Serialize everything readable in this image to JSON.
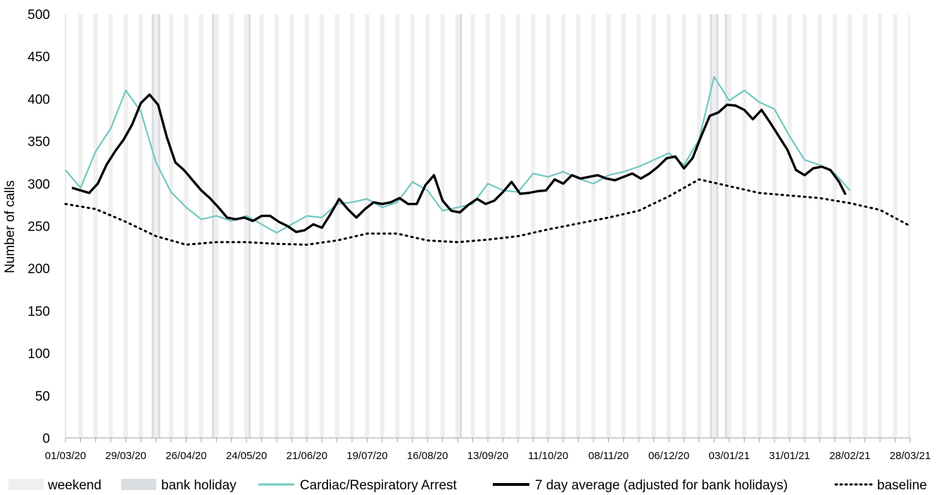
{
  "chart_data": {
    "type": "line",
    "title": "",
    "xlabel": "",
    "ylabel": "Number of calls",
    "ylim": [
      0,
      500
    ],
    "yticks": [
      0,
      50,
      100,
      150,
      200,
      250,
      300,
      350,
      400,
      450,
      500
    ],
    "xlim": [
      "2020-03-01",
      "2021-03-28"
    ],
    "xtick_labels": [
      "01/03/20",
      "29/03/20",
      "26/04/20",
      "24/05/20",
      "21/06/20",
      "19/07/20",
      "16/08/20",
      "13/09/20",
      "11/10/20",
      "08/11/20",
      "06/12/20",
      "03/01/21",
      "31/01/21",
      "28/02/21",
      "28/03/21"
    ],
    "grid": false,
    "legend_position": "bottom",
    "bank_holidays": [
      "2020-04-10",
      "2020-04-13",
      "2020-05-08",
      "2020-05-25",
      "2020-08-31",
      "2020-12-25",
      "2020-12-28",
      "2021-01-01"
    ],
    "series": [
      {
        "name": "Cardiac/Respiratory Arrest",
        "color": "#70c8c0",
        "x": [
          "2020-03-01",
          "2020-03-08",
          "2020-03-15",
          "2020-03-22",
          "2020-03-29",
          "2020-04-05",
          "2020-04-12",
          "2020-04-19",
          "2020-04-26",
          "2020-05-03",
          "2020-05-10",
          "2020-05-17",
          "2020-05-24",
          "2020-05-31",
          "2020-06-07",
          "2020-06-14",
          "2020-06-21",
          "2020-06-28",
          "2020-07-05",
          "2020-07-12",
          "2020-07-19",
          "2020-07-26",
          "2020-08-02",
          "2020-08-09",
          "2020-08-16",
          "2020-08-23",
          "2020-08-30",
          "2020-09-06",
          "2020-09-13",
          "2020-09-20",
          "2020-09-27",
          "2020-10-04",
          "2020-10-11",
          "2020-10-18",
          "2020-10-25",
          "2020-11-01",
          "2020-11-08",
          "2020-11-15",
          "2020-11-22",
          "2020-11-29",
          "2020-12-06",
          "2020-12-13",
          "2020-12-20",
          "2020-12-27",
          "2021-01-03",
          "2021-01-10",
          "2021-01-17",
          "2021-01-24",
          "2021-01-31",
          "2021-02-07",
          "2021-02-14",
          "2021-02-21",
          "2021-02-28"
        ],
        "values": [
          316,
          295,
          338,
          365,
          410,
          385,
          325,
          290,
          272,
          258,
          262,
          256,
          262,
          252,
          242,
          252,
          262,
          260,
          276,
          278,
          282,
          272,
          278,
          302,
          292,
          268,
          272,
          276,
          300,
          292,
          290,
          312,
          308,
          314,
          306,
          300,
          310,
          314,
          320,
          328,
          336,
          322,
          352,
          426,
          398,
          410,
          396,
          388,
          356,
          328,
          322,
          312,
          292
        ]
      },
      {
        "name": "7 day average (adjusted for bank holidays)",
        "color": "#000000",
        "x": [
          "2020-03-04",
          "2020-03-08",
          "2020-03-12",
          "2020-03-16",
          "2020-03-20",
          "2020-03-24",
          "2020-03-28",
          "2020-04-01",
          "2020-04-05",
          "2020-04-09",
          "2020-04-13",
          "2020-04-17",
          "2020-04-21",
          "2020-04-25",
          "2020-04-29",
          "2020-05-03",
          "2020-05-07",
          "2020-05-11",
          "2020-05-15",
          "2020-05-19",
          "2020-05-23",
          "2020-05-27",
          "2020-05-31",
          "2020-06-04",
          "2020-06-08",
          "2020-06-12",
          "2020-06-16",
          "2020-06-20",
          "2020-06-24",
          "2020-06-28",
          "2020-07-02",
          "2020-07-06",
          "2020-07-10",
          "2020-07-14",
          "2020-07-18",
          "2020-07-22",
          "2020-07-26",
          "2020-07-30",
          "2020-08-03",
          "2020-08-07",
          "2020-08-11",
          "2020-08-15",
          "2020-08-19",
          "2020-08-23",
          "2020-08-27",
          "2020-08-31",
          "2020-09-04",
          "2020-09-08",
          "2020-09-12",
          "2020-09-16",
          "2020-09-20",
          "2020-09-24",
          "2020-09-28",
          "2020-10-02",
          "2020-10-06",
          "2020-10-10",
          "2020-10-14",
          "2020-10-18",
          "2020-10-22",
          "2020-10-26",
          "2020-10-30",
          "2020-11-03",
          "2020-11-07",
          "2020-11-11",
          "2020-11-15",
          "2020-11-19",
          "2020-11-23",
          "2020-11-27",
          "2020-12-01",
          "2020-12-05",
          "2020-12-09",
          "2020-12-13",
          "2020-12-17",
          "2020-12-21",
          "2020-12-25",
          "2020-12-29",
          "2021-01-02",
          "2021-01-06",
          "2021-01-10",
          "2021-01-14",
          "2021-01-18",
          "2021-01-22",
          "2021-01-26",
          "2021-01-30",
          "2021-02-03",
          "2021-02-07",
          "2021-02-11",
          "2021-02-15",
          "2021-02-19",
          "2021-02-23",
          "2021-02-26"
        ],
        "values": [
          295,
          292,
          289,
          300,
          322,
          338,
          352,
          370,
          395,
          405,
          393,
          355,
          325,
          316,
          304,
          292,
          283,
          272,
          260,
          258,
          260,
          256,
          262,
          262,
          255,
          250,
          243,
          245,
          252,
          248,
          264,
          282,
          270,
          260,
          270,
          278,
          276,
          278,
          283,
          276,
          276,
          298,
          310,
          280,
          268,
          266,
          275,
          282,
          276,
          280,
          290,
          302,
          288,
          289,
          291,
          292,
          305,
          300,
          310,
          306,
          308,
          310,
          306,
          304,
          308,
          312,
          306,
          312,
          320,
          330,
          332,
          318,
          330,
          356,
          380,
          384,
          393,
          392,
          387,
          376,
          387,
          372,
          356,
          340,
          316,
          310,
          318,
          320,
          316,
          302,
          287
        ]
      },
      {
        "name": "baseline",
        "color": "#000000",
        "x": [
          "2020-03-01",
          "2020-03-15",
          "2020-03-29",
          "2020-04-12",
          "2020-04-26",
          "2020-05-10",
          "2020-05-24",
          "2020-06-07",
          "2020-06-21",
          "2020-07-05",
          "2020-07-19",
          "2020-08-02",
          "2020-08-16",
          "2020-08-30",
          "2020-09-13",
          "2020-09-27",
          "2020-10-11",
          "2020-10-25",
          "2020-11-08",
          "2020-11-22",
          "2020-12-06",
          "2020-12-20",
          "2021-01-03",
          "2021-01-17",
          "2021-01-31",
          "2021-02-14",
          "2021-02-28",
          "2021-03-14",
          "2021-03-28"
        ],
        "values": [
          276,
          270,
          255,
          238,
          228,
          231,
          231,
          229,
          228,
          233,
          241,
          241,
          233,
          231,
          234,
          238,
          246,
          253,
          260,
          268,
          285,
          305,
          297,
          289,
          286,
          283,
          277,
          269,
          250
        ]
      }
    ]
  },
  "legend": {
    "weekend": "weekend",
    "bank_holiday": "bank holiday",
    "series1": "Cardiac/Respiratory Arrest",
    "series2": "7 day average (adjusted for bank holidays)",
    "series3": "baseline"
  },
  "colors": {
    "weekend": "#efefef",
    "bank_holiday": "#d9dde2",
    "cardiac": "#70c8c0",
    "average": "#000000"
  }
}
